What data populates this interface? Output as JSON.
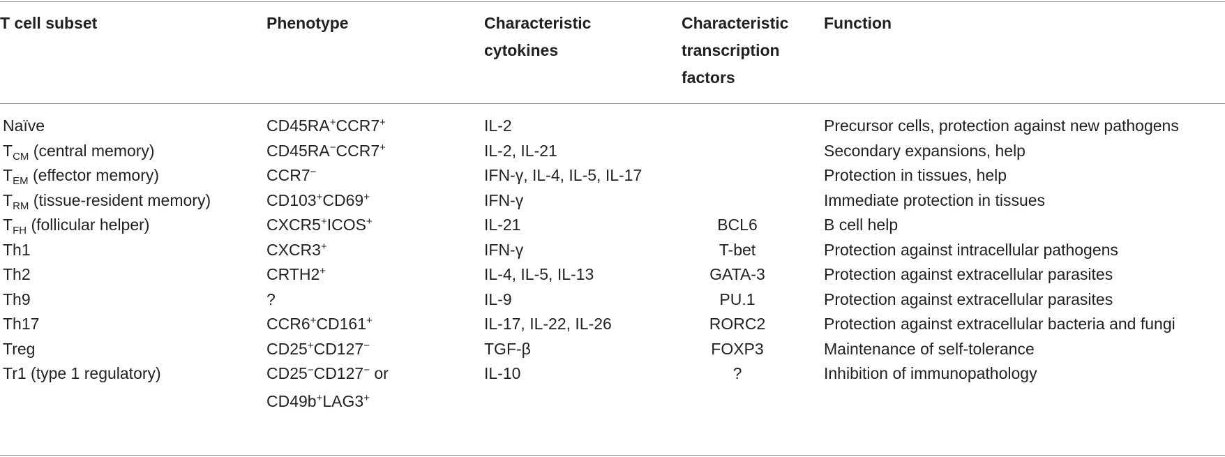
{
  "table": {
    "headers": {
      "subset": "T cell subset",
      "phenotype": "Phenotype",
      "cytokines_1": "Characteristic",
      "cytokines_2": "cytokines",
      "tf_1": "Characteristic",
      "tf_2": "transcription",
      "tf_3": "factors",
      "function": "Function"
    },
    "rows": [
      {
        "subset_main": "Naïve",
        "subset_sub": "",
        "subset_rest": "",
        "phenotype": [
          [
            "CD45RA",
            "+"
          ],
          [
            "CCR7",
            "+"
          ]
        ],
        "cytokines": "IL-2",
        "tf": "",
        "function": "Precursor cells, protection against new pathogens"
      },
      {
        "subset_main": "T",
        "subset_sub": "CM",
        "subset_rest": " (central memory)",
        "phenotype": [
          [
            "CD45RA",
            "−"
          ],
          [
            "CCR7",
            "+"
          ]
        ],
        "cytokines": "IL-2, IL-21",
        "tf": "",
        "function": "Secondary expansions, help"
      },
      {
        "subset_main": "T",
        "subset_sub": "EM",
        "subset_rest": " (effector memory)",
        "phenotype": [
          [
            "CCR7",
            "−"
          ]
        ],
        "cytokines": "IFN-γ, IL-4, IL-5, IL-17",
        "tf": "",
        "function": "Protection in tissues, help"
      },
      {
        "subset_main": "T",
        "subset_sub": "RM",
        "subset_rest": " (tissue-resident memory)",
        "phenotype": [
          [
            "CD103",
            "+"
          ],
          [
            "CD69",
            "+"
          ]
        ],
        "cytokines": "IFN-γ",
        "tf": "",
        "function": "Immediate protection in tissues"
      },
      {
        "subset_main": "T",
        "subset_sub": "FH",
        "subset_rest": " (follicular helper)",
        "phenotype": [
          [
            "CXCR5",
            "+"
          ],
          [
            "ICOS",
            "+"
          ]
        ],
        "cytokines": "IL-21",
        "tf": "BCL6",
        "function": "B cell help"
      },
      {
        "subset_main": "Th1",
        "subset_sub": "",
        "subset_rest": "",
        "phenotype": [
          [
            "CXCR3",
            "+"
          ]
        ],
        "cytokines": "IFN-γ",
        "tf": "T-bet",
        "function": "Protection against intracellular pathogens"
      },
      {
        "subset_main": "Th2",
        "subset_sub": "",
        "subset_rest": "",
        "phenotype": [
          [
            "CRTH2",
            "+"
          ]
        ],
        "cytokines": "IL-4, IL-5, IL-13",
        "tf": "GATA-3",
        "function": "Protection against extracellular parasites"
      },
      {
        "subset_main": "Th9",
        "subset_sub": "",
        "subset_rest": "",
        "phenotype": [
          [
            "?",
            ""
          ]
        ],
        "cytokines": "IL-9",
        "tf": "PU.1",
        "function": "Protection against extracellular parasites"
      },
      {
        "subset_main": "Th17",
        "subset_sub": "",
        "subset_rest": "",
        "phenotype": [
          [
            "CCR6",
            "+"
          ],
          [
            "CD161",
            "+"
          ]
        ],
        "cytokines": "IL-17, IL-22, IL-26",
        "tf": "RORC2",
        "function": "Protection against extracellular bacteria and fungi"
      },
      {
        "subset_main": "Treg",
        "subset_sub": "",
        "subset_rest": "",
        "phenotype": [
          [
            "CD25",
            "+"
          ],
          [
            "CD127",
            "−"
          ]
        ],
        "cytokines": "TGF-β",
        "tf": "FOXP3",
        "function": "Maintenance of self-tolerance"
      },
      {
        "subset_main": "Tr1 (type 1 regulatory)",
        "subset_sub": "",
        "subset_rest": "",
        "phenotype": [
          [
            "CD25",
            "−"
          ],
          [
            "CD127",
            "−"
          ],
          [
            " or",
            ""
          ]
        ],
        "phenotype_line2": [
          [
            "CD49b",
            "+"
          ],
          [
            "LAG3",
            "+"
          ]
        ],
        "cytokines": "IL-10",
        "tf": "?",
        "function": "Inhibition of immunopathology"
      }
    ]
  }
}
